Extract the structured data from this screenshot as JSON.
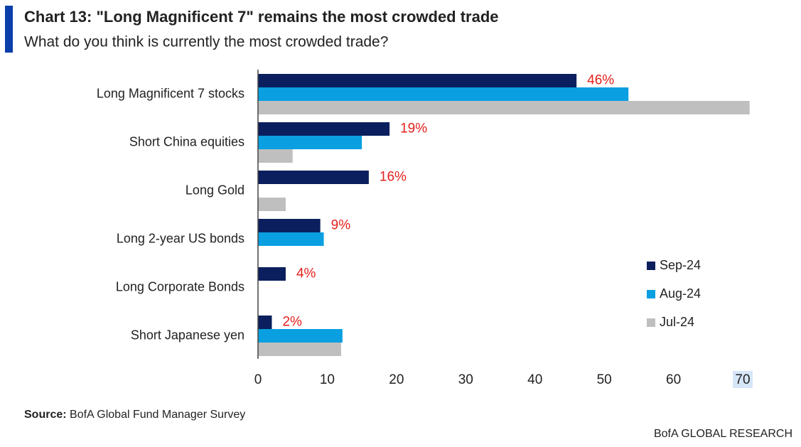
{
  "chart_data": {
    "type": "hbar",
    "title": "Chart 13: \"Long Magnificent 7\" remains the most crowded trade",
    "subtitle": "What do you think is currently the most crowded trade?",
    "categories": [
      "Long Magnificent 7 stocks",
      "Short China equities",
      "Long Gold",
      "Long 2-year US bonds",
      "Long Corporate Bonds",
      "Short Japanese yen"
    ],
    "series": [
      {
        "name": "Sep-24",
        "color": "#0b1f5e",
        "values": [
          46,
          19,
          16,
          9,
          4,
          2
        ],
        "value_labels": [
          "46%",
          "19%",
          "16%",
          "9%",
          "4%",
          "2%"
        ]
      },
      {
        "name": "Aug-24",
        "color": "#0a9fe0",
        "values": [
          53.5,
          15,
          null,
          9.5,
          null,
          12.2
        ]
      },
      {
        "name": "Jul-24",
        "color": "#bfbfbf",
        "values": [
          71,
          5,
          4,
          null,
          null,
          12
        ]
      }
    ],
    "xlim": [
      0,
      70
    ],
    "xticks": [
      0,
      10,
      20,
      30,
      40,
      50,
      60,
      70
    ],
    "legend": "right",
    "source_label": "Source:",
    "source": "BofA Global Fund Manager Survey",
    "footer": "BofA GLOBAL RESEARCH"
  }
}
